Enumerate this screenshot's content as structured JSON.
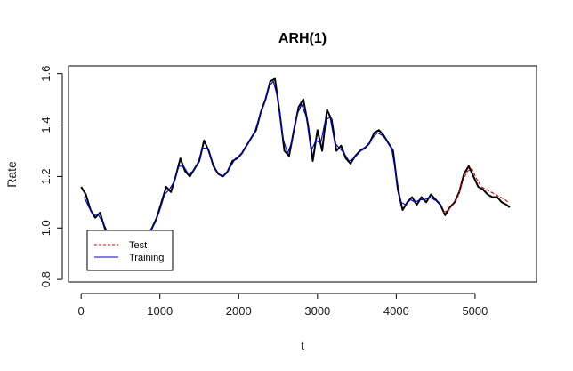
{
  "chart_data": {
    "type": "line",
    "title": "ARH(1)",
    "xlabel": "t",
    "ylabel": "Rate",
    "xlim": [
      -160,
      5780
    ],
    "ylim": [
      0.79,
      1.63
    ],
    "x_ticks": [
      0,
      1000,
      2000,
      3000,
      4000,
      5000
    ],
    "x_tick_labels": [
      "0",
      "1000",
      "2000",
      "3000",
      "4000",
      "5000"
    ],
    "y_ticks": [
      0.8,
      1.0,
      1.2,
      1.4,
      1.6
    ],
    "y_tick_labels": [
      "0.8",
      "1.0",
      "1.2",
      "1.4",
      "1.6"
    ],
    "grid": false,
    "legend_position": "bottom-left",
    "series": [
      {
        "name": "",
        "color": "#000000",
        "style": "solid",
        "x": [
          0,
          60,
          120,
          180,
          240,
          300,
          360,
          420,
          480,
          540,
          600,
          660,
          720,
          780,
          840,
          900,
          960,
          1020,
          1080,
          1140,
          1200,
          1260,
          1320,
          1380,
          1440,
          1500,
          1560,
          1620,
          1680,
          1740,
          1800,
          1860,
          1920,
          1980,
          2040,
          2100,
          2160,
          2220,
          2280,
          2340,
          2400,
          2460,
          2520,
          2580,
          2640,
          2700,
          2760,
          2820,
          2880,
          2940,
          3000,
          3060,
          3120,
          3180,
          3240,
          3300,
          3360,
          3420,
          3480,
          3540,
          3600,
          3660,
          3720,
          3780,
          3840,
          3900,
          3960,
          4020,
          4080,
          4140,
          4200,
          4260,
          4320,
          4380,
          4440,
          4500,
          4560,
          4620,
          4680,
          4740,
          4800,
          4860,
          4920,
          4980,
          5040,
          5100,
          5160,
          5220,
          5280,
          5340,
          5400,
          5440
        ],
        "values": [
          1.16,
          1.13,
          1.07,
          1.04,
          1.06,
          1.0,
          0.96,
          0.9,
          0.86,
          0.84,
          0.87,
          0.91,
          0.93,
          0.95,
          0.97,
          1.0,
          1.04,
          1.1,
          1.16,
          1.14,
          1.2,
          1.27,
          1.22,
          1.2,
          1.23,
          1.26,
          1.34,
          1.3,
          1.24,
          1.21,
          1.2,
          1.22,
          1.26,
          1.27,
          1.29,
          1.32,
          1.35,
          1.38,
          1.45,
          1.5,
          1.57,
          1.58,
          1.45,
          1.3,
          1.28,
          1.38,
          1.47,
          1.5,
          1.4,
          1.26,
          1.38,
          1.3,
          1.46,
          1.42,
          1.3,
          1.32,
          1.27,
          1.25,
          1.28,
          1.3,
          1.31,
          1.33,
          1.37,
          1.38,
          1.36,
          1.33,
          1.3,
          1.15,
          1.07,
          1.1,
          1.12,
          1.09,
          1.12,
          1.1,
          1.13,
          1.11,
          1.09,
          1.05,
          1.08,
          1.1,
          1.14,
          1.21,
          1.24,
          1.2,
          1.16,
          1.15,
          1.13,
          1.12,
          1.12,
          1.1,
          1.09,
          1.08
        ]
      },
      {
        "name": "Training",
        "color": "#0000cc",
        "style": "solid",
        "x": [
          40,
          100,
          160,
          220,
          280,
          340,
          400,
          460,
          520,
          580,
          640,
          700,
          760,
          820,
          880,
          940,
          1000,
          1060,
          1120,
          1180,
          1240,
          1300,
          1360,
          1420,
          1480,
          1540,
          1600,
          1660,
          1720,
          1780,
          1840,
          1900,
          1960,
          2020,
          2080,
          2140,
          2200,
          2260,
          2320,
          2380,
          2440,
          2500,
          2560,
          2620,
          2680,
          2740,
          2800,
          2860,
          2920,
          2980,
          3040,
          3100,
          3160,
          3220,
          3280,
          3340,
          3400,
          3460,
          3520,
          3580,
          3640,
          3700,
          3760,
          3820,
          3880,
          3940,
          4000,
          4060,
          4120,
          4180,
          4240,
          4300,
          4360,
          4420,
          4480,
          4540,
          4580
        ],
        "values": [
          1.12,
          1.08,
          1.05,
          1.05,
          1.02,
          0.98,
          0.93,
          0.88,
          0.85,
          0.86,
          0.9,
          0.92,
          0.94,
          0.96,
          0.99,
          1.02,
          1.07,
          1.13,
          1.15,
          1.18,
          1.24,
          1.24,
          1.21,
          1.22,
          1.25,
          1.31,
          1.31,
          1.26,
          1.22,
          1.2,
          1.21,
          1.24,
          1.27,
          1.28,
          1.31,
          1.34,
          1.37,
          1.43,
          1.48,
          1.55,
          1.57,
          1.5,
          1.35,
          1.29,
          1.34,
          1.44,
          1.48,
          1.43,
          1.3,
          1.34,
          1.33,
          1.42,
          1.43,
          1.33,
          1.31,
          1.29,
          1.26,
          1.27,
          1.29,
          1.31,
          1.32,
          1.35,
          1.37,
          1.36,
          1.34,
          1.31,
          1.2,
          1.1,
          1.09,
          1.11,
          1.1,
          1.11,
          1.11,
          1.12,
          1.11,
          1.1,
          1.08
        ]
      },
      {
        "name": "Test",
        "color": "#dd0000",
        "style": "dashed",
        "x": [
          4600,
          4660,
          4720,
          4780,
          4840,
          4900,
          4960,
          5020,
          5080,
          5140,
          5200,
          5260,
          5320,
          5380,
          5420
        ],
        "values": [
          1.06,
          1.07,
          1.09,
          1.12,
          1.18,
          1.22,
          1.23,
          1.19,
          1.16,
          1.15,
          1.14,
          1.13,
          1.12,
          1.11,
          1.1
        ]
      }
    ]
  }
}
